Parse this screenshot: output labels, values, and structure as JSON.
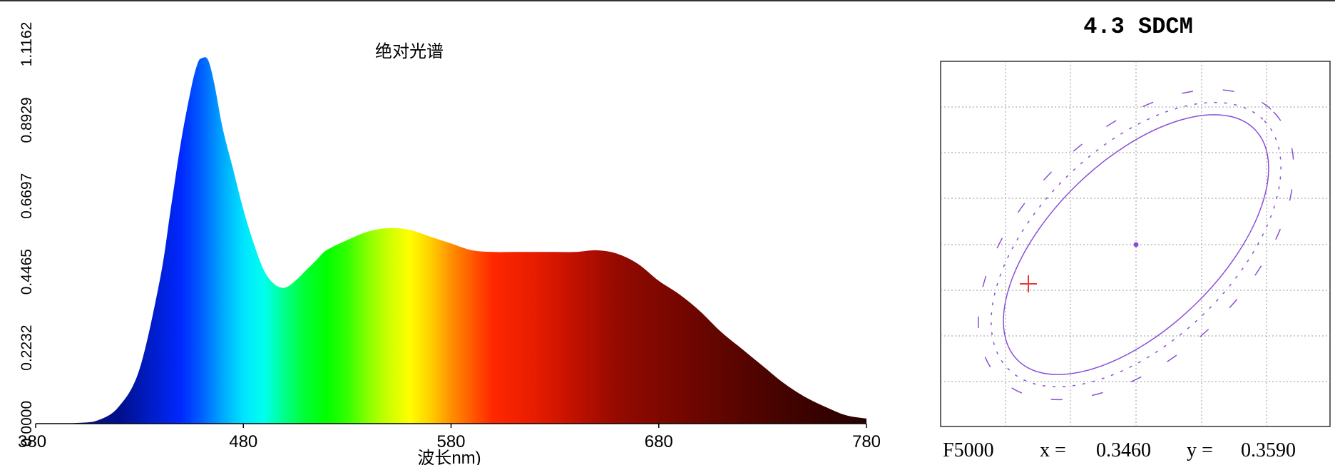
{
  "chart_data": [
    {
      "type": "area",
      "title": "绝对光谱",
      "xlabel": "波长nm)",
      "ylabel": "",
      "xlim": [
        380,
        780
      ],
      "ylim": [
        0.0,
        1.1162
      ],
      "x_ticks": [
        "380",
        "480",
        "580",
        "680",
        "780"
      ],
      "y_ticks": [
        "0.0000",
        "0.2232",
        "0.4465",
        "0.6697",
        "0.8929",
        "1.1162"
      ],
      "fill": "visible-spectrum gradient",
      "series": [
        {
          "x": [
            380,
            390,
            400,
            410,
            420,
            430,
            440,
            445,
            450,
            455,
            458,
            460,
            463,
            466,
            470,
            475,
            480,
            485,
            490,
            495,
            500,
            505,
            510,
            515,
            520,
            530,
            540,
            550,
            560,
            570,
            580,
            590,
            600,
            610,
            620,
            630,
            640,
            650,
            660,
            670,
            680,
            690,
            700,
            710,
            720,
            730,
            740,
            750,
            760,
            770,
            780
          ],
          "values": [
            0.0,
            0.0,
            0.002,
            0.01,
            0.05,
            0.16,
            0.43,
            0.63,
            0.83,
            0.99,
            1.06,
            1.075,
            1.07,
            1.0,
            0.87,
            0.75,
            0.63,
            0.53,
            0.45,
            0.41,
            0.4,
            0.42,
            0.45,
            0.48,
            0.51,
            0.54,
            0.565,
            0.575,
            0.57,
            0.55,
            0.53,
            0.51,
            0.505,
            0.505,
            0.505,
            0.505,
            0.505,
            0.51,
            0.5,
            0.47,
            0.42,
            0.38,
            0.33,
            0.27,
            0.22,
            0.17,
            0.12,
            0.08,
            0.05,
            0.025,
            0.015
          ]
        }
      ]
    },
    {
      "type": "scatter",
      "title": "4.3 SDCM",
      "caption": {
        "standard": "F5000",
        "x_label": "x =",
        "x_value": "0.3460",
        "y_label": "y =",
        "y_value": "0.3590"
      },
      "grid": true,
      "center_point": {
        "x": 0.346,
        "y": 0.359
      },
      "measured_point": {
        "marker": "+",
        "color": "#e53935",
        "x": 0.3431,
        "y": 0.3583
      },
      "ellipse_color": "#8a4fd8",
      "ellipse_sdcm": 4.3
    }
  ]
}
